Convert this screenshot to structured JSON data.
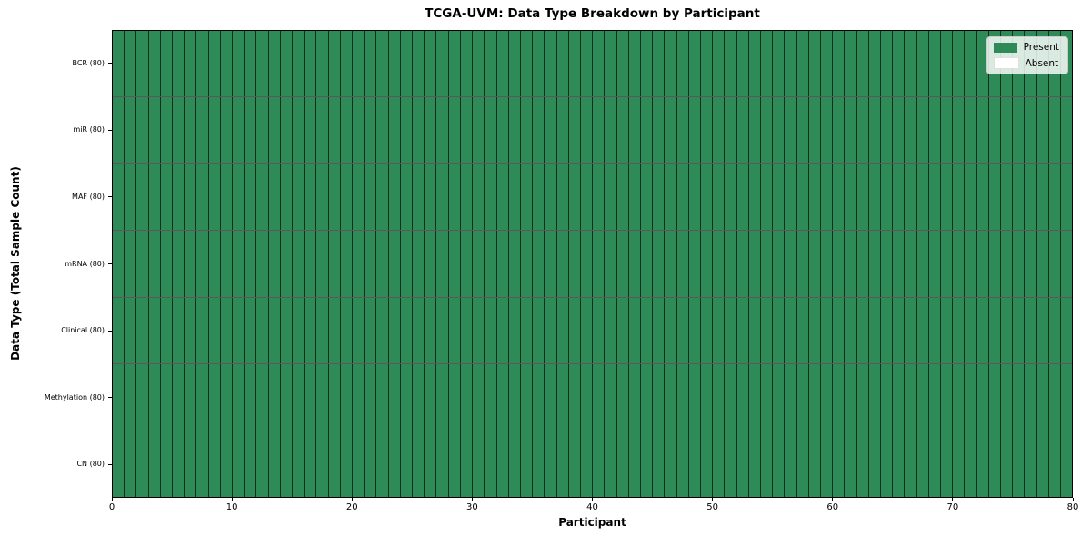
{
  "chart_data": {
    "type": "heatmap",
    "title": "TCGA-UVM: Data Type Breakdown by Participant",
    "xlabel": "Participant",
    "ylabel": "Data Type (Total Sample Count)",
    "x_range": [
      0,
      80
    ],
    "x_ticks": [
      0,
      10,
      20,
      30,
      40,
      50,
      60,
      70,
      80
    ],
    "n_participants": 80,
    "grid_on": false,
    "legend_position": "upper right",
    "legend": [
      {
        "label": "Present",
        "color": "#2e8b57"
      },
      {
        "label": "Absent",
        "color": "#ffffff"
      }
    ],
    "rows": [
      {
        "label": "BCR (80)",
        "data_type": "BCR",
        "total_sample_count": 80,
        "present_participants": 80,
        "absent_participants": 0
      },
      {
        "label": "miR (80)",
        "data_type": "miR",
        "total_sample_count": 80,
        "present_participants": 80,
        "absent_participants": 0
      },
      {
        "label": "MAF (80)",
        "data_type": "MAF",
        "total_sample_count": 80,
        "present_participants": 80,
        "absent_participants": 0
      },
      {
        "label": "mRNA (80)",
        "data_type": "mRNA",
        "total_sample_count": 80,
        "present_participants": 80,
        "absent_participants": 0
      },
      {
        "label": "Clinical (80)",
        "data_type": "Clinical",
        "total_sample_count": 80,
        "present_participants": 80,
        "absent_participants": 0
      },
      {
        "label": "Methylation (80)",
        "data_type": "Methylation",
        "total_sample_count": 80,
        "present_participants": 80,
        "absent_participants": 0
      },
      {
        "label": "CN (80)",
        "data_type": "CN",
        "total_sample_count": 80,
        "present_participants": 80,
        "absent_participants": 0
      }
    ],
    "all_cells_present": true,
    "colors": {
      "present": "#2e8b57",
      "absent": "#ffffff",
      "cell_edge": "rgba(0,0,0,0.65)",
      "frame": "#000000"
    }
  }
}
